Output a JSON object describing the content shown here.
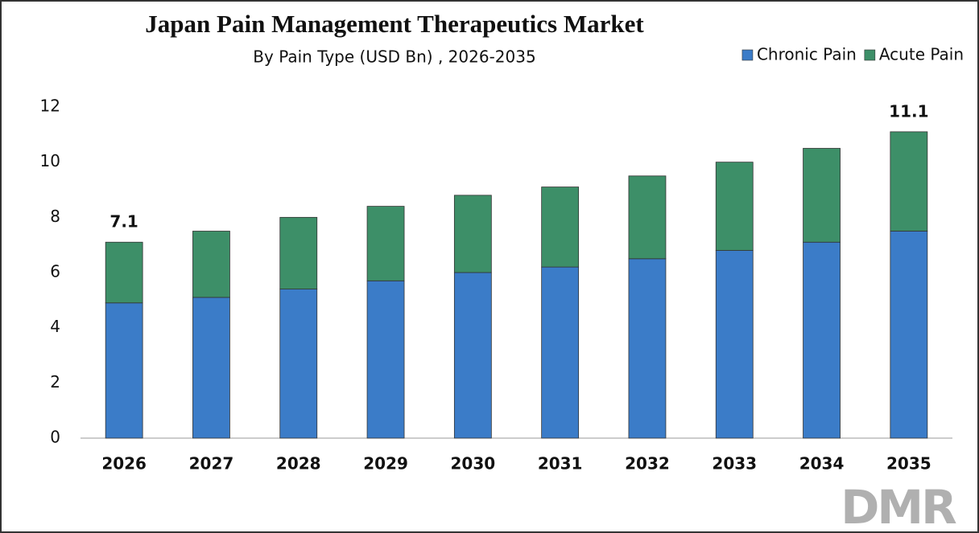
{
  "chart_data": {
    "type": "stacked-bar",
    "title": "Japan Pain Management Therapeutics Market",
    "subtitle": "By Pain Type (USD Bn) , 2026-2035",
    "categories": [
      "2026",
      "2027",
      "2028",
      "2029",
      "2030",
      "2031",
      "2032",
      "2033",
      "2034",
      "2035"
    ],
    "series": [
      {
        "name": "Chronic Pain",
        "color": "#3b7cc8",
        "values": [
          4.9,
          5.1,
          5.4,
          5.7,
          6.0,
          6.2,
          6.5,
          6.8,
          7.1,
          7.5
        ]
      },
      {
        "name": "Acute Pain",
        "color": "#3d8f68",
        "values": [
          2.2,
          2.4,
          2.6,
          2.7,
          2.8,
          2.9,
          3.0,
          3.2,
          3.4,
          3.6
        ]
      }
    ],
    "annotations": [
      {
        "x": "2026",
        "text": "7.1"
      },
      {
        "x": "2035",
        "text": "11.1"
      }
    ],
    "ylim": [
      0,
      12
    ],
    "yticks": [
      0,
      2,
      4,
      6,
      8,
      10,
      12
    ],
    "grid": false,
    "legend": "top-right"
  },
  "watermark": "DMR"
}
